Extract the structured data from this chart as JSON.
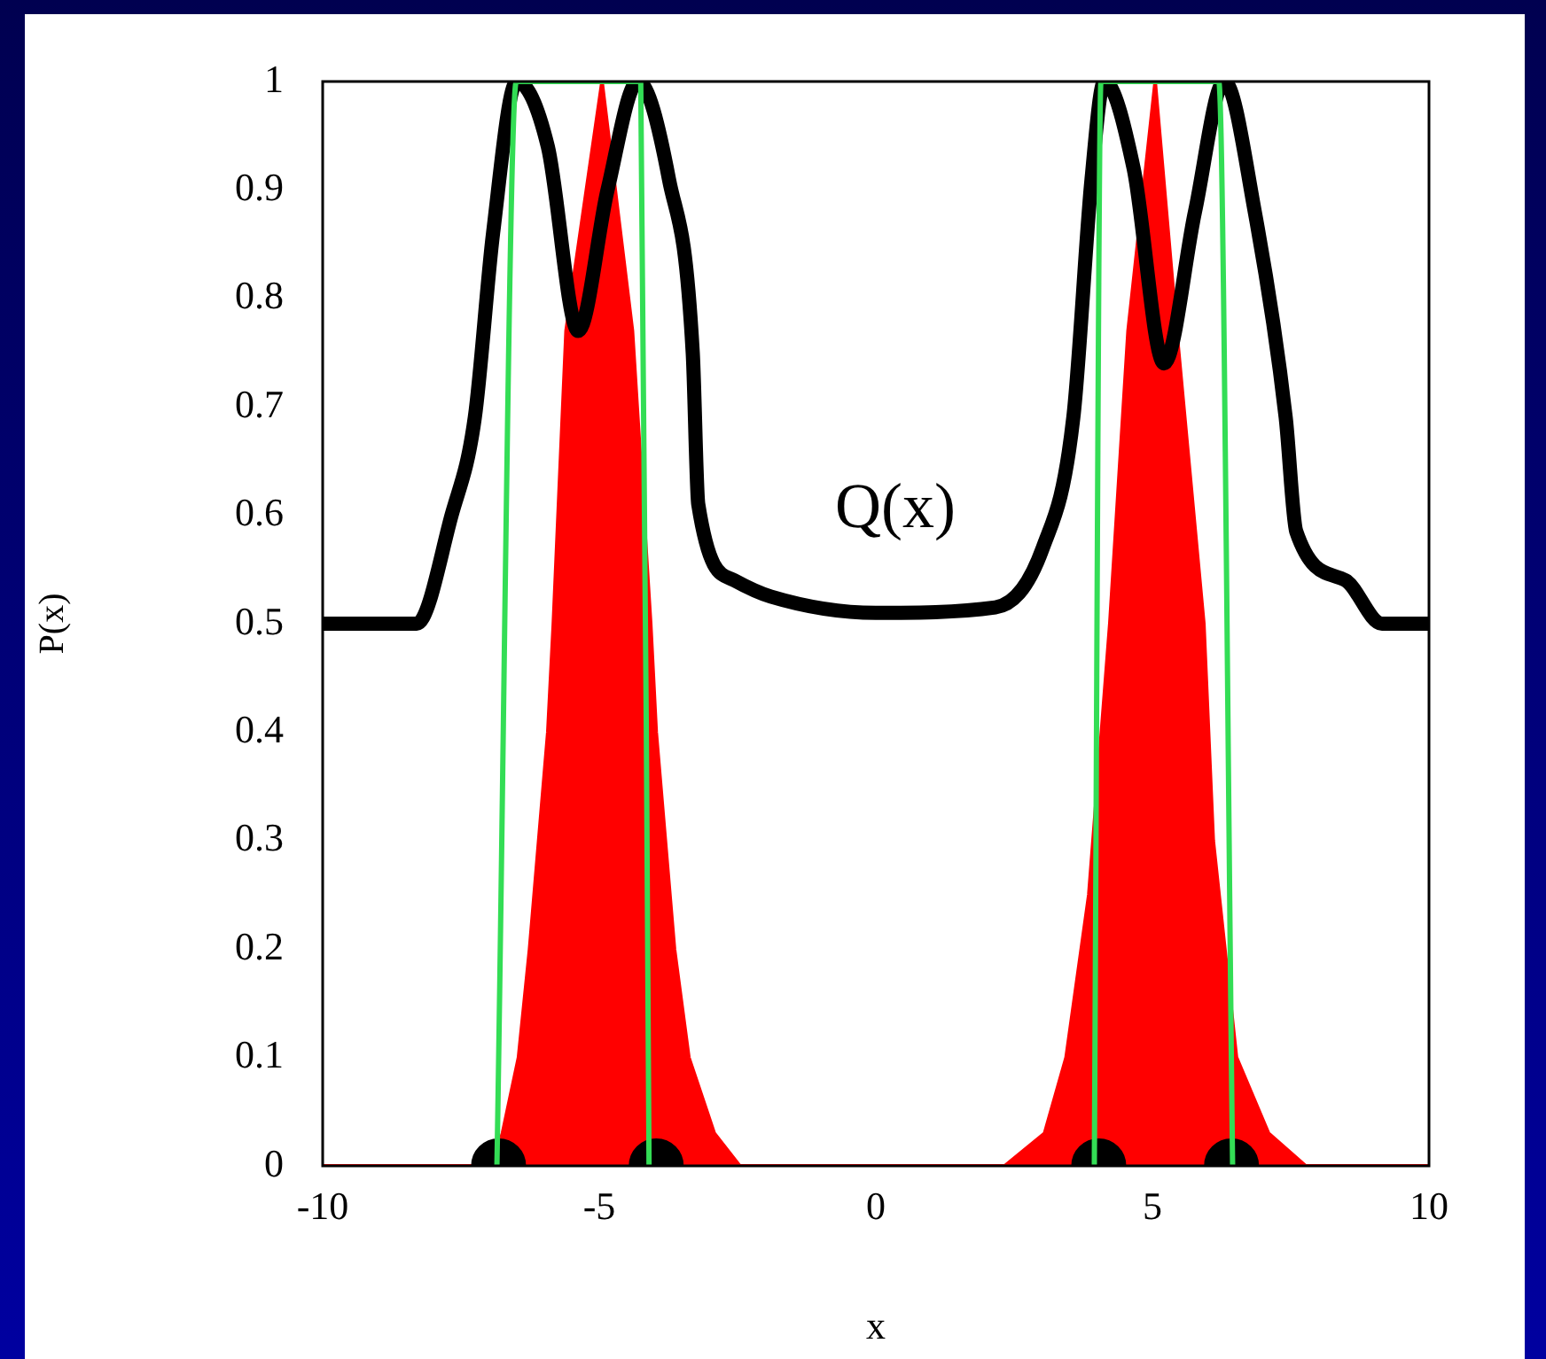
{
  "chart_data": {
    "type": "line",
    "xlabel": "x",
    "ylabel": "P(x)",
    "xlim": [
      -10,
      10
    ],
    "xticks": [
      -10,
      -5,
      0,
      5,
      10
    ],
    "ylim": [
      0,
      1
    ],
    "yticks": [
      0,
      0.1,
      0.2,
      0.3,
      0.4,
      0.5,
      0.6,
      0.7,
      0.8,
      0.9,
      1
    ],
    "grid": false,
    "legend": false,
    "annotations": [
      "Q(x)"
    ],
    "series": [
      {
        "type": "area",
        "color": "#ff0000",
        "x": [
          -10,
          -6.95,
          -6.75,
          -6.46,
          -6.26,
          -5.93,
          -5.83,
          -5.6,
          -4.95,
          -4.4,
          -4.07,
          -3.97,
          -3.64,
          -3.38,
          -2.92,
          -2.46,
          2.33,
          3.05,
          3.44,
          3.85,
          4.23,
          4.56,
          5.05,
          5.44,
          5.93,
          6.1,
          6.52,
          7.1,
          7.77,
          10
        ],
        "values": [
          0,
          0,
          0.03,
          0.1,
          0.2,
          0.4,
          0.5,
          0.77,
          1.0,
          0.77,
          0.5,
          0.4,
          0.2,
          0.1,
          0.03,
          0,
          0,
          0.03,
          0.1,
          0.25,
          0.5,
          0.77,
          1.0,
          0.77,
          0.5,
          0.3,
          0.1,
          0.03,
          0,
          0
        ]
      },
      {
        "color": "#33dd55",
        "x": [
          -6.85,
          -6.5,
          -4.25,
          -4.1,
          0,
          3.95,
          4.07,
          6.2,
          6.45
        ],
        "values": [
          0,
          1,
          1,
          0,
          null,
          0,
          1,
          1,
          0
        ]
      },
      {
        "color": "#000000",
        "x": [
          -10,
          -8.3,
          -7.67,
          -7.25,
          -6.92,
          -6.49,
          -5.93,
          -5.38,
          -4.85,
          -4.3,
          -3.74,
          -3.31,
          -3.21,
          -2.56,
          -1.9,
          0,
          2.16,
          3.02,
          3.57,
          3.9,
          4.13,
          4.66,
          5.21,
          5.77,
          6.3,
          6.85,
          7.41,
          7.6,
          8.49,
          9.15,
          10
        ],
        "values": [
          0.5,
          0.5,
          0.6,
          0.69,
          0.86,
          1.0,
          0.94,
          0.77,
          0.9,
          1.0,
          0.91,
          0.75,
          0.61,
          0.54,
          0.525,
          0.51,
          0.515,
          0.57,
          0.69,
          0.91,
          1.0,
          0.92,
          0.74,
          0.88,
          1.0,
          0.88,
          0.69,
          0.585,
          0.54,
          0.5,
          0.5
        ]
      },
      {
        "type": "scatter",
        "color": "#000000",
        "marker": "circle",
        "x": [
          -6.82,
          -3.97,
          4.03,
          6.43
        ],
        "values": [
          0,
          0,
          0,
          0
        ]
      }
    ]
  }
}
